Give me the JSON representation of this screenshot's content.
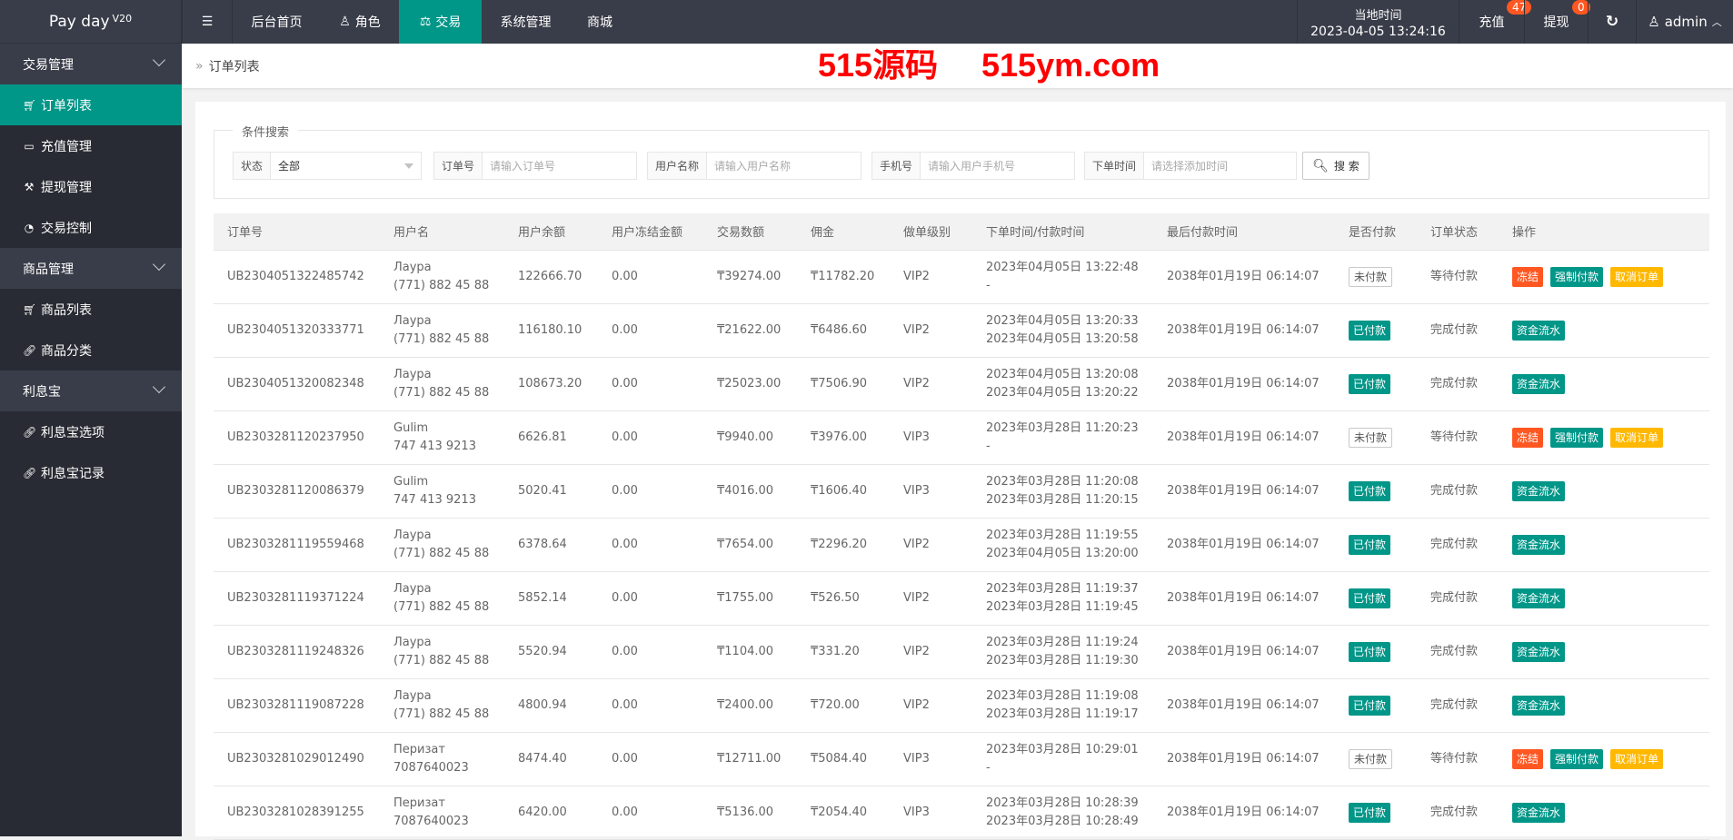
{
  "colors": {
    "topbar": "#393D49",
    "sidebar": "#282B33",
    "accent": "#009688",
    "danger": "#FF5722",
    "warn": "#FFB800"
  },
  "header": {
    "logo": "Pay day",
    "logo_sup": "V20",
    "nav": [
      "后台首页",
      "角色",
      "交易",
      "系统管理",
      "商城"
    ],
    "time_label": "当地时间",
    "time_value": "2023-04-05 13:24:16",
    "recharge": "充值",
    "recharge_count": "47",
    "withdraw": "提现",
    "withdraw_count": "0",
    "user": "admin"
  },
  "sidebar": {
    "groups": [
      {
        "label": "交易管理",
        "items": [
          {
            "label": "订单列表",
            "icon": "cart-icon"
          },
          {
            "label": "充值管理",
            "icon": "monitor-icon"
          },
          {
            "label": "提现管理",
            "icon": "gavel-icon"
          },
          {
            "label": "交易控制",
            "icon": "dashboard-icon"
          }
        ]
      },
      {
        "label": "商品管理",
        "items": [
          {
            "label": "商品列表",
            "icon": "shopping-cart-icon"
          },
          {
            "label": "商品分类",
            "icon": "link-icon"
          }
        ]
      },
      {
        "label": "利息宝",
        "items": [
          {
            "label": "利息宝选项",
            "icon": "link-icon"
          },
          {
            "label": "利息宝记录",
            "icon": "link-icon"
          }
        ]
      }
    ]
  },
  "breadcrumb": "订单列表",
  "search": {
    "legend": "条件搜索",
    "status_label": "状态",
    "status_value": "全部",
    "order_label": "订单号",
    "order_placeholder": "请输入订单号",
    "user_label": "用户名称",
    "user_placeholder": "请输入用户名称",
    "phone_label": "手机号",
    "phone_placeholder": "请输入用户手机号",
    "time_label": "下单时间",
    "time_placeholder": "请选择添加时间",
    "button": "搜 索"
  },
  "table": {
    "headers": [
      "订单号",
      "用户名",
      "用户余额",
      "用户冻结金额",
      "交易数额",
      "佣金",
      "做单级别",
      "下单时间/付款时间",
      "最后付款时间",
      "是否付款",
      "订单状态",
      "操作"
    ],
    "rows": [
      {
        "id": "UB2304051322485742",
        "name": "Лаура",
        "phone": "(771) 882 45 88",
        "balance": "122666.70",
        "frozen": "0.00",
        "amount": "₸39274.00",
        "commission": "₸11782.20",
        "level": "VIP2",
        "order_time": "2023年04月05日 13:22:48",
        "pay_time": "-",
        "last_pay": "2038年01月19日 06:14:07",
        "paid": "未付款",
        "status": "等待付款",
        "actions": [
          "冻结",
          "强制付款",
          "取消订单"
        ]
      },
      {
        "id": "UB2304051320333771",
        "name": "Лаура",
        "phone": "(771) 882 45 88",
        "balance": "116180.10",
        "frozen": "0.00",
        "amount": "₸21622.00",
        "commission": "₸6486.60",
        "level": "VIP2",
        "order_time": "2023年04月05日 13:20:33",
        "pay_time": "2023年04月05日 13:20:58",
        "last_pay": "2038年01月19日 06:14:07",
        "paid": "已付款",
        "status": "完成付款",
        "actions": [
          "资金流水"
        ]
      },
      {
        "id": "UB2304051320082348",
        "name": "Лаура",
        "phone": "(771) 882 45 88",
        "balance": "108673.20",
        "frozen": "0.00",
        "amount": "₸25023.00",
        "commission": "₸7506.90",
        "level": "VIP2",
        "order_time": "2023年04月05日 13:20:08",
        "pay_time": "2023年04月05日 13:20:22",
        "last_pay": "2038年01月19日 06:14:07",
        "paid": "已付款",
        "status": "完成付款",
        "actions": [
          "资金流水"
        ]
      },
      {
        "id": "UB2303281120237950",
        "name": "Gulim",
        "phone": "747 413 9213",
        "balance": "6626.81",
        "frozen": "0.00",
        "amount": "₸9940.00",
        "commission": "₸3976.00",
        "level": "VIP3",
        "order_time": "2023年03月28日 11:20:23",
        "pay_time": "-",
        "last_pay": "2038年01月19日 06:14:07",
        "paid": "未付款",
        "status": "等待付款",
        "actions": [
          "冻结",
          "强制付款",
          "取消订单"
        ]
      },
      {
        "id": "UB2303281120086379",
        "name": "Gulim",
        "phone": "747 413 9213",
        "balance": "5020.41",
        "frozen": "0.00",
        "amount": "₸4016.00",
        "commission": "₸1606.40",
        "level": "VIP3",
        "order_time": "2023年03月28日 11:20:08",
        "pay_time": "2023年03月28日 11:20:15",
        "last_pay": "2038年01月19日 06:14:07",
        "paid": "已付款",
        "status": "完成付款",
        "actions": [
          "资金流水"
        ]
      },
      {
        "id": "UB2303281119559468",
        "name": "Лаура",
        "phone": "(771) 882 45 88",
        "balance": "6378.64",
        "frozen": "0.00",
        "amount": "₸7654.00",
        "commission": "₸2296.20",
        "level": "VIP2",
        "order_time": "2023年03月28日 11:19:55",
        "pay_time": "2023年04月05日 13:20:00",
        "last_pay": "2038年01月19日 06:14:07",
        "paid": "已付款",
        "status": "完成付款",
        "actions": [
          "资金流水"
        ]
      },
      {
        "id": "UB2303281119371224",
        "name": "Лаура",
        "phone": "(771) 882 45 88",
        "balance": "5852.14",
        "frozen": "0.00",
        "amount": "₸1755.00",
        "commission": "₸526.50",
        "level": "VIP2",
        "order_time": "2023年03月28日 11:19:37",
        "pay_time": "2023年03月28日 11:19:45",
        "last_pay": "2038年01月19日 06:14:07",
        "paid": "已付款",
        "status": "完成付款",
        "actions": [
          "资金流水"
        ]
      },
      {
        "id": "UB2303281119248326",
        "name": "Лаура",
        "phone": "(771) 882 45 88",
        "balance": "5520.94",
        "frozen": "0.00",
        "amount": "₸1104.00",
        "commission": "₸331.20",
        "level": "VIP2",
        "order_time": "2023年03月28日 11:19:24",
        "pay_time": "2023年03月28日 11:19:30",
        "last_pay": "2038年01月19日 06:14:07",
        "paid": "已付款",
        "status": "完成付款",
        "actions": [
          "资金流水"
        ]
      },
      {
        "id": "UB2303281119087228",
        "name": "Лаура",
        "phone": "(771) 882 45 88",
        "balance": "4800.94",
        "frozen": "0.00",
        "amount": "₸2400.00",
        "commission": "₸720.00",
        "level": "VIP2",
        "order_time": "2023年03月28日 11:19:08",
        "pay_time": "2023年03月28日 11:19:17",
        "last_pay": "2038年01月19日 06:14:07",
        "paid": "已付款",
        "status": "完成付款",
        "actions": [
          "资金流水"
        ]
      },
      {
        "id": "UB2303281029012490",
        "name": "Перизат",
        "phone": "7087640023",
        "balance": "8474.40",
        "frozen": "0.00",
        "amount": "₸12711.00",
        "commission": "₸5084.40",
        "level": "VIP3",
        "order_time": "2023年03月28日 10:29:01",
        "pay_time": "-",
        "last_pay": "2038年01月19日 06:14:07",
        "paid": "未付款",
        "status": "等待付款",
        "actions": [
          "冻结",
          "强制付款",
          "取消订单"
        ]
      },
      {
        "id": "UB2303281028391255",
        "name": "Перизат",
        "phone": "7087640023",
        "balance": "6420.00",
        "frozen": "0.00",
        "amount": "₸5136.00",
        "commission": "₸2054.40",
        "level": "VIP3",
        "order_time": "2023年03月28日 10:28:39",
        "pay_time": "2023年03月28日 10:28:49",
        "last_pay": "2038年01月19日 06:14:07",
        "paid": "已付款",
        "status": "完成付款",
        "actions": [
          "资金流水"
        ]
      }
    ]
  },
  "watermark": [
    "515源码",
    "515ym.com"
  ]
}
